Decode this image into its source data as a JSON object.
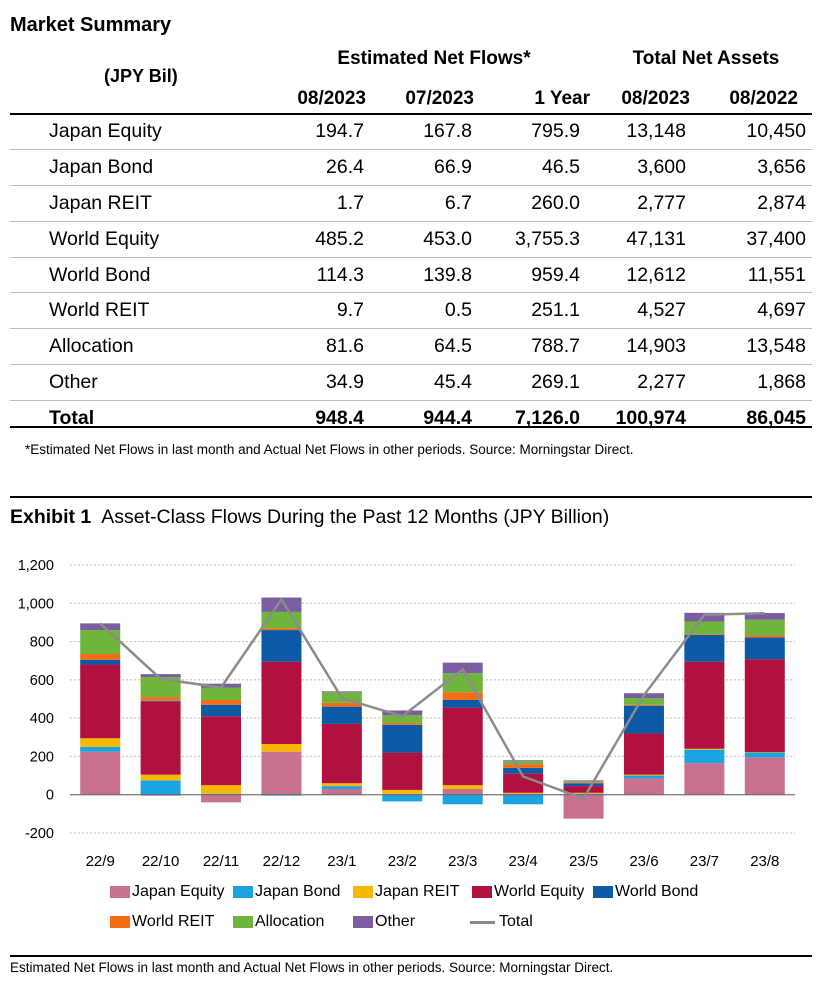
{
  "summary": {
    "title": "Market Summary",
    "unit": "(JPY Bil)",
    "group_flows": "Estimated Net Flows*",
    "group_assets": "Total Net Assets",
    "columns": [
      "08/2023",
      "07/2023",
      "1 Year",
      "08/2023",
      "08/2022"
    ],
    "rows": [
      {
        "label": "Japan Equity",
        "values": [
          "194.7",
          "167.8",
          "795.9",
          "13,148",
          "10,450"
        ]
      },
      {
        "label": "Japan Bond",
        "values": [
          "26.4",
          "66.9",
          "46.5",
          "3,600",
          "3,656"
        ]
      },
      {
        "label": "Japan REIT",
        "values": [
          "1.7",
          "6.7",
          "260.0",
          "2,777",
          "2,874"
        ]
      },
      {
        "label": "World Equity",
        "values": [
          "485.2",
          "453.0",
          "3,755.3",
          "47,131",
          "37,400"
        ]
      },
      {
        "label": "World Bond",
        "values": [
          "114.3",
          "139.8",
          "959.4",
          "12,612",
          "11,551"
        ]
      },
      {
        "label": "World REIT",
        "values": [
          "9.7",
          "0.5",
          "251.1",
          "4,527",
          "4,697"
        ]
      },
      {
        "label": "Allocation",
        "values": [
          "81.6",
          "64.5",
          "788.7",
          "14,903",
          "13,548"
        ]
      },
      {
        "label": "Other",
        "values": [
          "34.9",
          "45.4",
          "269.1",
          "2,277",
          "1,868"
        ]
      },
      {
        "label": "Total",
        "values": [
          "948.4",
          "944.4",
          "7,126.0",
          "100,974",
          "86,045"
        ]
      }
    ],
    "footnote": "*Estimated Net Flows in last month and Actual Net Flows in other periods. Source: Morningstar Direct."
  },
  "exhibit": {
    "label": "Exhibit 1",
    "title": "Asset-Class Flows During the Past 12 Months (JPY Billion)",
    "source": "Estimated Net Flows in last month and Actual Net Flows in other periods. Source: Morningstar Direct."
  },
  "chart_data": {
    "type": "bar",
    "stacked": true,
    "categories": [
      "22/9",
      "22/10",
      "22/11",
      "22/12",
      "23/1",
      "23/2",
      "23/3",
      "23/4",
      "23/5",
      "23/6",
      "23/7",
      "23/8"
    ],
    "ylim": [
      -200,
      1200
    ],
    "yticks": [
      -200,
      0,
      200,
      400,
      600,
      800,
      1000,
      1200
    ],
    "ytick_labels": [
      "-200",
      "0",
      "200",
      "400",
      "600",
      "800",
      "1,000",
      "1,200"
    ],
    "gridlines": true,
    "legend_position": "bottom",
    "series": [
      {
        "name": "Japan Equity",
        "color": "#c9728f",
        "values": [
          225,
          -5,
          -40,
          225,
          30,
          5,
          30,
          5,
          -125,
          85,
          165,
          195
        ]
      },
      {
        "name": "Japan Bond",
        "color": "#1ba4e0",
        "values": [
          25,
          75,
          5,
          -5,
          15,
          -35,
          -50,
          -50,
          5,
          15,
          70,
          26
        ]
      },
      {
        "name": "Japan REIT",
        "color": "#f8b800",
        "values": [
          45,
          30,
          45,
          40,
          15,
          20,
          20,
          5,
          5,
          5,
          5,
          2
        ]
      },
      {
        "name": "World Equity",
        "color": "#b0113e",
        "values": [
          385,
          380,
          360,
          430,
          310,
          195,
          405,
          100,
          35,
          215,
          455,
          485
        ]
      },
      {
        "name": "World Bond",
        "color": "#0c5aa5",
        "values": [
          25,
          5,
          60,
          165,
          90,
          145,
          40,
          30,
          15,
          145,
          140,
          114
        ]
      },
      {
        "name": "World REIT",
        "color": "#f46d14",
        "values": [
          30,
          20,
          25,
          10,
          20,
          10,
          40,
          20,
          5,
          5,
          5,
          10
        ]
      },
      {
        "name": "Allocation",
        "color": "#6fb43b",
        "values": [
          125,
          105,
          65,
          85,
          55,
          40,
          100,
          15,
          5,
          35,
          65,
          82
        ]
      },
      {
        "name": "Other",
        "color": "#7a5ea0",
        "values": [
          35,
          15,
          20,
          75,
          5,
          25,
          55,
          5,
          5,
          25,
          45,
          35
        ]
      }
    ],
    "line": {
      "name": "Total",
      "color": "#8c8c8c",
      "values": [
        895,
        605,
        560,
        1020,
        505,
        410,
        655,
        95,
        -20,
        520,
        940,
        948
      ]
    }
  }
}
